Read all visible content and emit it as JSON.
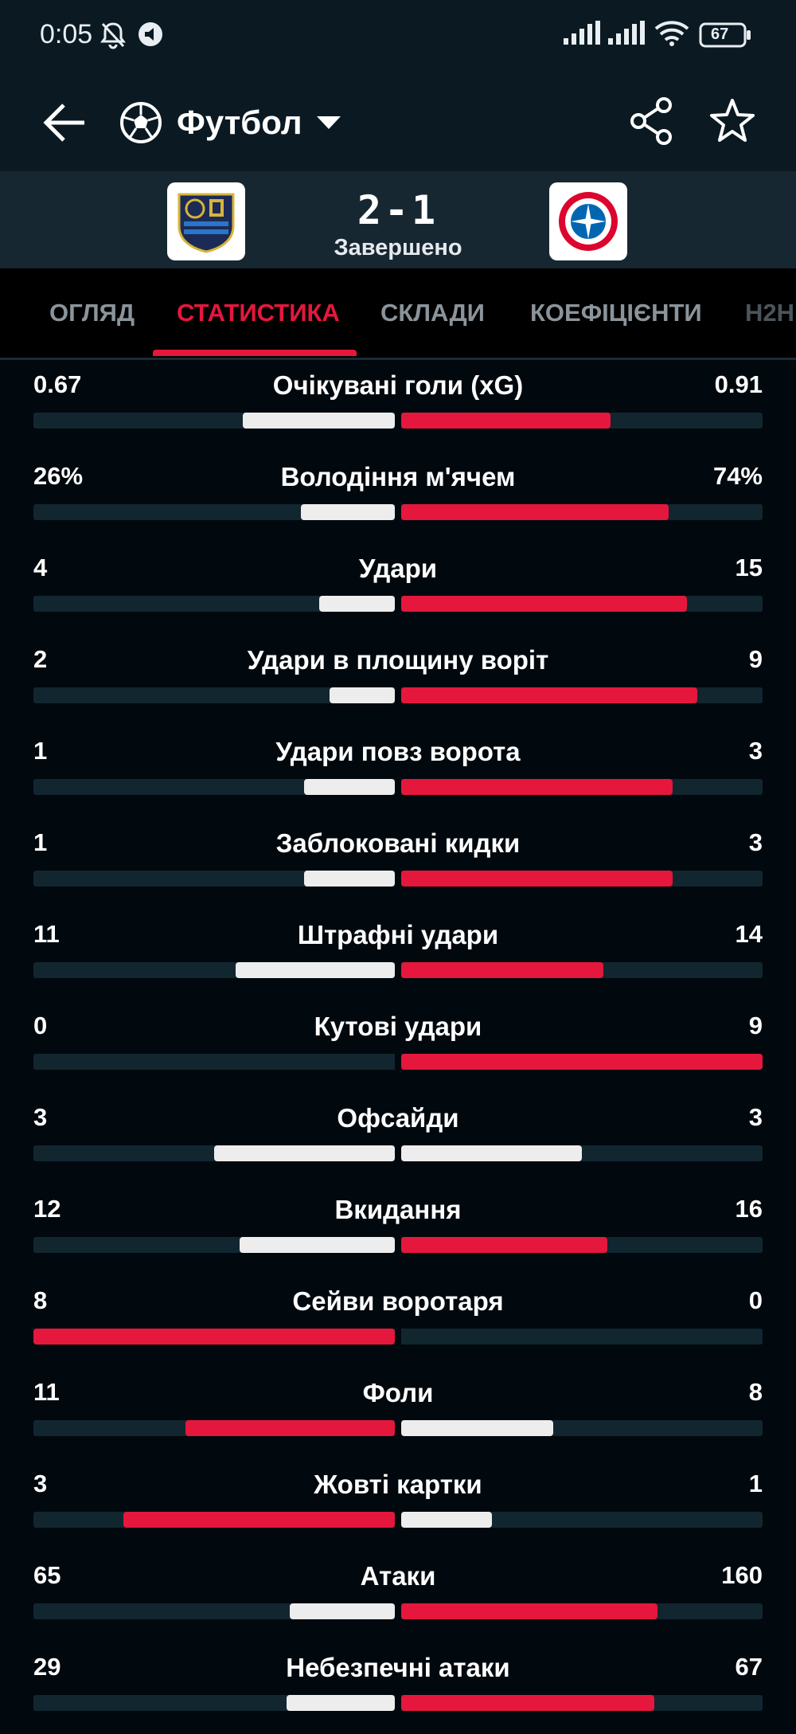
{
  "status_bar": {
    "time": "0:05",
    "battery": "67"
  },
  "header": {
    "sport_label": "Футбол"
  },
  "match": {
    "score": "2-1",
    "status": "Завершено"
  },
  "tabs": [
    {
      "label": "ОГЛЯД",
      "active": false
    },
    {
      "label": "СТАТИСТИКА",
      "active": true
    },
    {
      "label": "СКЛАДИ",
      "active": false
    },
    {
      "label": "КОЕФІЦІЄНТИ",
      "active": false
    },
    {
      "label": "H2H",
      "active": false
    }
  ],
  "colors": {
    "accent": "#e5173d",
    "bar_white": "#ededed",
    "track": "#122630"
  },
  "stats": [
    {
      "name": "Очікувані голи (xG)",
      "home": "0.67",
      "away": "0.91",
      "home_share": 0.42,
      "away_share": 0.58,
      "home_color": "white",
      "away_color": "red"
    },
    {
      "name": "Володіння м'ячем",
      "home": "26%",
      "away": "74%",
      "home_share": 0.26,
      "away_share": 0.74,
      "home_color": "white",
      "away_color": "red"
    },
    {
      "name": "Удари",
      "home": "4",
      "away": "15",
      "home_share": 0.21,
      "away_share": 0.79,
      "home_color": "white",
      "away_color": "red"
    },
    {
      "name": "Удари в площину воріт",
      "home": "2",
      "away": "9",
      "home_share": 0.18,
      "away_share": 0.82,
      "home_color": "white",
      "away_color": "red"
    },
    {
      "name": "Удари повз ворота",
      "home": "1",
      "away": "3",
      "home_share": 0.25,
      "away_share": 0.75,
      "home_color": "white",
      "away_color": "red"
    },
    {
      "name": "Заблоковані кидки",
      "home": "1",
      "away": "3",
      "home_share": 0.25,
      "away_share": 0.75,
      "home_color": "white",
      "away_color": "red"
    },
    {
      "name": "Штрафні удари",
      "home": "11",
      "away": "14",
      "home_share": 0.44,
      "away_share": 0.56,
      "home_color": "white",
      "away_color": "red"
    },
    {
      "name": "Кутові удари",
      "home": "0",
      "away": "9",
      "home_share": 0.0,
      "away_share": 1.0,
      "home_color": "white",
      "away_color": "red"
    },
    {
      "name": "Офсайди",
      "home": "3",
      "away": "3",
      "home_share": 0.5,
      "away_share": 0.5,
      "home_color": "white",
      "away_color": "white"
    },
    {
      "name": "Вкидання",
      "home": "12",
      "away": "16",
      "home_share": 0.43,
      "away_share": 0.57,
      "home_color": "white",
      "away_color": "red"
    },
    {
      "name": "Сейви воротаря",
      "home": "8",
      "away": "0",
      "home_share": 1.0,
      "away_share": 0.0,
      "home_color": "red",
      "away_color": "white"
    },
    {
      "name": "Фоли",
      "home": "11",
      "away": "8",
      "home_share": 0.58,
      "away_share": 0.42,
      "home_color": "red",
      "away_color": "white"
    },
    {
      "name": "Жовті картки",
      "home": "3",
      "away": "1",
      "home_share": 0.75,
      "away_share": 0.25,
      "home_color": "red",
      "away_color": "white"
    },
    {
      "name": "Атаки",
      "home": "65",
      "away": "160",
      "home_share": 0.29,
      "away_share": 0.71,
      "home_color": "white",
      "away_color": "red"
    },
    {
      "name": "Небезпечні атаки",
      "home": "29",
      "away": "67",
      "home_share": 0.3,
      "away_share": 0.7,
      "home_color": "white",
      "away_color": "red"
    }
  ]
}
